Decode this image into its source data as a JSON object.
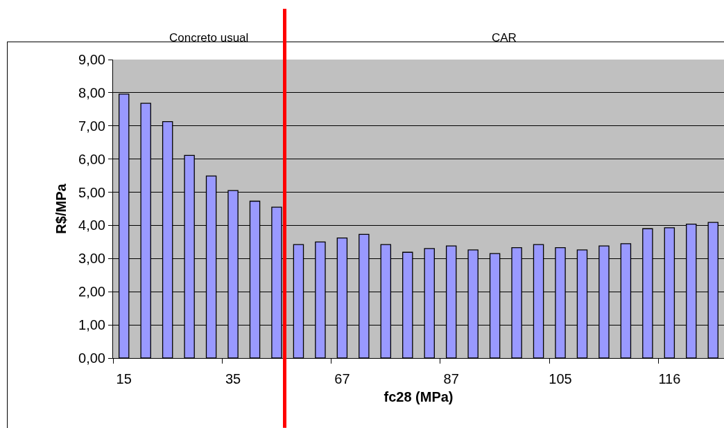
{
  "chart_data": {
    "type": "bar",
    "xlabel": "fc28 (MPa)",
    "ylabel": "R$/MPa",
    "categories": [
      "15",
      null,
      null,
      null,
      null,
      "35",
      null,
      null,
      null,
      null,
      "67",
      null,
      null,
      null,
      null,
      "87",
      null,
      null,
      null,
      null,
      "105",
      null,
      null,
      null,
      null,
      "116",
      null,
      null
    ],
    "values": [
      7.96,
      7.68,
      7.13,
      6.11,
      5.49,
      5.05,
      4.73,
      4.55,
      3.42,
      3.5,
      3.62,
      3.73,
      3.42,
      3.19,
      3.3,
      3.38,
      3.26,
      3.15,
      3.33,
      3.42,
      3.33,
      3.26,
      3.38,
      3.45,
      3.9,
      3.93,
      4.04,
      4.09
    ],
    "color": "#9999ff",
    "ylim": [
      0,
      9
    ],
    "yticks": [
      {
        "value": 0,
        "label": "0,00"
      },
      {
        "value": 1,
        "label": "1,00"
      },
      {
        "value": 2,
        "label": "2,00"
      },
      {
        "value": 3,
        "label": "3,00"
      },
      {
        "value": 4,
        "label": "4,00"
      },
      {
        "value": 5,
        "label": "5,00"
      },
      {
        "value": 6,
        "label": "6,00"
      },
      {
        "value": 7,
        "label": "7,00"
      },
      {
        "value": 8,
        "label": "8,00"
      },
      {
        "value": 9,
        "label": "9,00"
      }
    ],
    "grid": "y",
    "legend": false,
    "annotations": [
      "Concreto usual",
      "CAR"
    ]
  }
}
